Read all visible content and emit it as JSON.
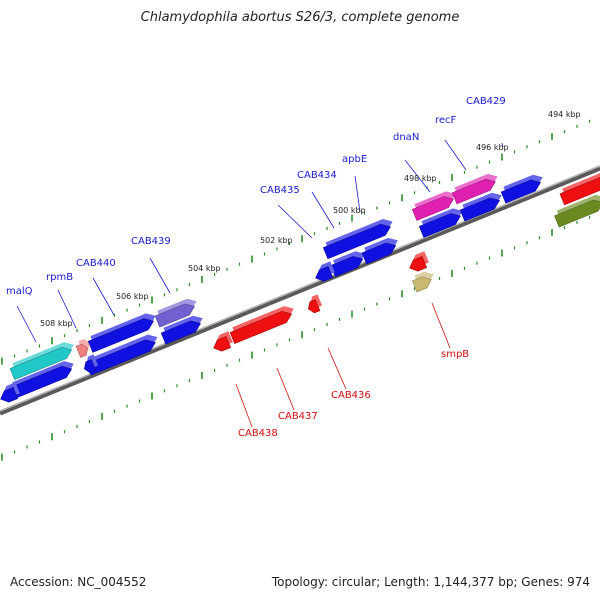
{
  "title": "Chlamydophila abortus S26/3, complete genome",
  "footer": {
    "accession": "Accession: NC_004552",
    "summary": "Topology: circular; Length: 1,144,377 bp; Genes: 974"
  },
  "ruler": [
    "494 kbp",
    "496 kbp",
    "498 kbp",
    "500 kbp",
    "502 kbp",
    "504 kbp",
    "506 kbp",
    "508 kbp"
  ],
  "genes_forward": [
    "CAB429",
    "recF",
    "dnaN",
    "apbE",
    "CAB434",
    "CAB435",
    "CAB439",
    "CAB440",
    "rpmB",
    "malQ"
  ],
  "genes_reverse": [
    "smpB",
    "CAB436",
    "CAB437",
    "CAB438"
  ],
  "colors": {
    "blue": "#1010e0",
    "red": "#ee1010",
    "magenta": "#e020b0",
    "cyan": "#20c8c8",
    "purple": "#7060d0",
    "olive": "#6a8a20",
    "khaki": "#c8b870",
    "pink": "#f08080",
    "dot_green": "#2a8a2a",
    "backbone": "#8a8a8a"
  }
}
